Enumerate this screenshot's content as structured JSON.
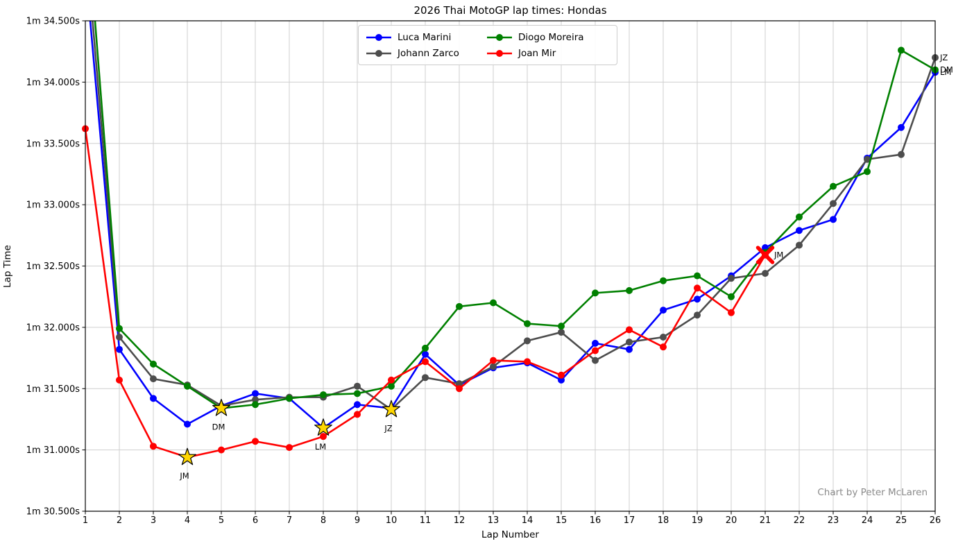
{
  "page": {
    "credit": "Chart by Peter McLaren"
  },
  "chart_data": {
    "type": "line",
    "title": "2026 Thai MotoGP lap times: Hondas",
    "xlabel": "Lap Number",
    "ylabel": "Lap Time",
    "grid": true,
    "legend_position": "upper center",
    "time_format": "1m {seconds}s",
    "xlim": [
      1,
      26
    ],
    "ylim_seconds": [
      30.5,
      34.5
    ],
    "x_laps": [
      1,
      2,
      3,
      4,
      5,
      6,
      7,
      8,
      9,
      10,
      11,
      12,
      13,
      14,
      15,
      16,
      17,
      18,
      19,
      20,
      21,
      22,
      23,
      24,
      25,
      26
    ],
    "yticks": [
      {
        "value": 34.5,
        "label": "1m 34.500s"
      },
      {
        "value": 34.0,
        "label": "1m 34.000s"
      },
      {
        "value": 33.5,
        "label": "1m 33.500s"
      },
      {
        "value": 33.0,
        "label": "1m 33.000s"
      },
      {
        "value": 32.5,
        "label": "1m 32.500s"
      },
      {
        "value": 32.0,
        "label": "1m 32.000s"
      },
      {
        "value": 31.5,
        "label": "1m 31.500s"
      },
      {
        "value": 31.0,
        "label": "1m 31.000s"
      },
      {
        "value": 30.5,
        "label": "1m 30.500s"
      }
    ],
    "series": [
      {
        "name": "Luca Marini",
        "abbr": "LM",
        "color": "#0000ff",
        "lap_times_seconds": [
          34.95,
          31.82,
          31.42,
          31.21,
          31.36,
          31.46,
          31.42,
          31.18,
          31.37,
          31.34,
          31.78,
          31.53,
          31.67,
          31.71,
          31.57,
          31.87,
          31.82,
          32.14,
          32.23,
          32.42,
          32.65,
          32.79,
          32.88,
          33.38,
          33.63,
          34.08
        ],
        "best_lap": {
          "lap": 8,
          "time_seconds": 31.18,
          "label": "LM"
        },
        "end_label": "LM"
      },
      {
        "name": "Johann Zarco",
        "abbr": "JZ",
        "color": "#4d4d4d",
        "lap_times_seconds": [
          35.2,
          31.92,
          31.58,
          31.53,
          31.36,
          31.41,
          31.43,
          31.43,
          31.52,
          31.33,
          31.59,
          31.54,
          31.68,
          31.89,
          31.96,
          31.73,
          31.88,
          31.92,
          32.1,
          32.4,
          32.44,
          32.67,
          33.01,
          33.37,
          33.41,
          34.2
        ],
        "best_lap": {
          "lap": 10,
          "time_seconds": 31.33,
          "label": "JZ"
        },
        "end_label": "JZ"
      },
      {
        "name": "Diogo Moreira",
        "abbr": "DM",
        "color": "#008000",
        "lap_times_seconds": [
          35.5,
          31.99,
          31.7,
          31.52,
          31.34,
          31.37,
          31.42,
          31.45,
          31.46,
          31.52,
          31.83,
          32.17,
          32.2,
          32.03,
          32.01,
          32.28,
          32.3,
          32.38,
          32.42,
          32.25,
          32.61,
          32.9,
          33.15,
          33.27,
          34.26,
          34.1
        ],
        "best_lap": {
          "lap": 5,
          "time_seconds": 31.34,
          "label": "DM"
        },
        "end_label": "DM"
      },
      {
        "name": "Joan Mir",
        "abbr": "JM",
        "color": "#ff0000",
        "lap_times_seconds": [
          33.62,
          31.57,
          31.03,
          30.94,
          31.0,
          31.07,
          31.02,
          31.11,
          31.29,
          31.57,
          31.72,
          31.5,
          31.73,
          31.72,
          31.61,
          31.81,
          31.98,
          31.84,
          32.32,
          32.12,
          32.59,
          null,
          null,
          null,
          null,
          null
        ],
        "best_lap": {
          "lap": 4,
          "time_seconds": 30.94,
          "label": "JM"
        },
        "retirement": {
          "lap": 21,
          "time_seconds": 32.59,
          "label": "JM",
          "marker": "x"
        }
      }
    ],
    "style": {
      "grid_color": "#cfcfcf",
      "spine_color": "#000000",
      "star_fill": "#ffd700",
      "star_edge": "#000000",
      "tick_label_color": "#000000",
      "annotation_color": "#000000"
    }
  }
}
